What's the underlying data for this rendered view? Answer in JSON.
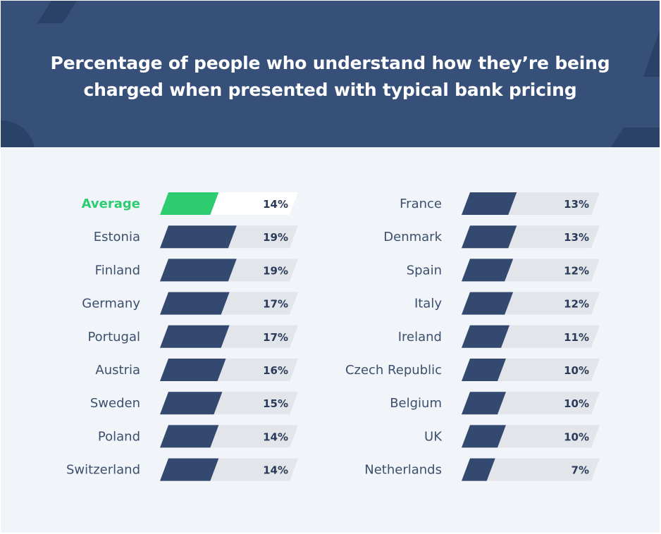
{
  "title": "Percentage of people who understand how they’re being charged when presented with typical bank pricing",
  "colors": {
    "header_bg": "#36507a",
    "page_bg": "#f1f4f8",
    "bar": "#34496f",
    "bar_track": "#e2e5ea",
    "average_bar": "#2ecc71",
    "average_track": "#ffffff",
    "average_label": "#2ecc71"
  },
  "chart_data": {
    "type": "bar",
    "orientation": "horizontal",
    "title": "Percentage of people who understand how they’re being charged when presented with typical bank pricing",
    "xlim": [
      0,
      100
    ],
    "grid": false,
    "columns": [
      {
        "categories": [
          "Average",
          "Estonia",
          "Finland",
          "Germany",
          "Portugal",
          "Austria",
          "Sweden",
          "Poland",
          "Switzerland"
        ],
        "values": [
          14,
          19,
          19,
          17,
          17,
          16,
          15,
          14,
          14
        ],
        "value_labels": [
          "14%",
          "19%",
          "19%",
          "17%",
          "17%",
          "16%",
          "15%",
          "14%",
          "14%"
        ],
        "highlight": "Average"
      },
      {
        "categories": [
          "France",
          "Denmark",
          "Spain",
          "Italy",
          "Ireland",
          "Czech Republic",
          "Belgium",
          "UK",
          "Netherlands"
        ],
        "values": [
          13,
          13,
          12,
          12,
          11,
          10,
          10,
          10,
          7
        ],
        "value_labels": [
          "13%",
          "13%",
          "12%",
          "12%",
          "11%",
          "10%",
          "10%",
          "10%",
          "7%"
        ]
      }
    ]
  }
}
